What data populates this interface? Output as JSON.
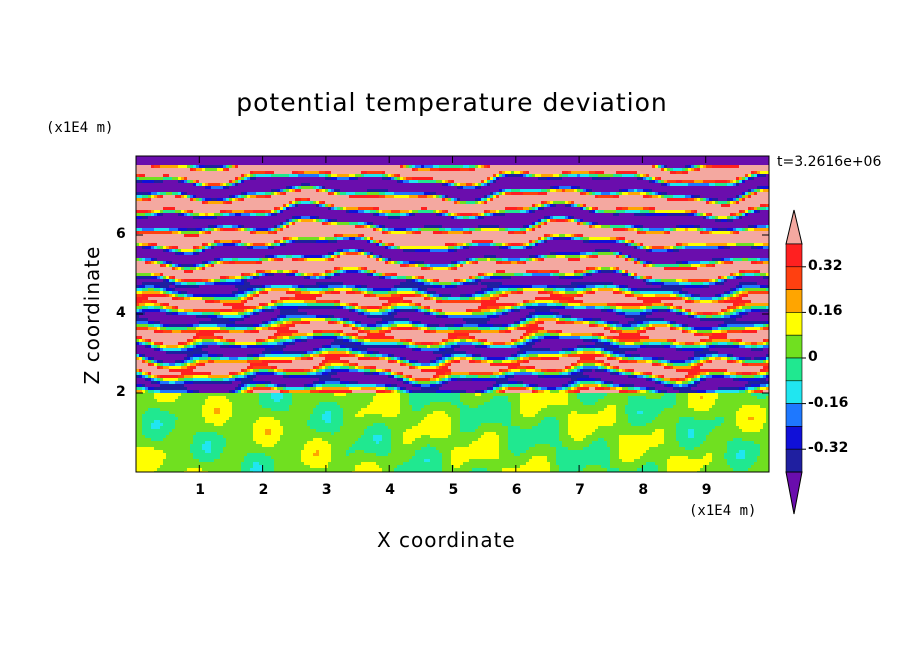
{
  "chart_data": {
    "type": "heatmap",
    "title": "potential temperature deviation",
    "xlabel": "X coordinate",
    "ylabel": "Z coordinate",
    "x_unit": "(x1E4 m)",
    "y_unit": "(x1E4 m)",
    "time_label": "t=3.2616e+06",
    "xlim": [
      0,
      10
    ],
    "ylim": [
      0,
      8
    ],
    "x_ticks": [
      "1",
      "2",
      "3",
      "4",
      "5",
      "6",
      "7",
      "8",
      "9"
    ],
    "y_ticks": [
      "2",
      "4",
      "6"
    ],
    "colorbar": {
      "labels": [
        "0.32",
        "0.16",
        "0",
        "-0.16",
        "-0.32"
      ],
      "levels": [
        -0.4,
        -0.32,
        -0.24,
        -0.16,
        -0.08,
        0,
        0.08,
        0.16,
        0.24,
        0.32,
        0.4
      ],
      "colors": [
        "#6a0dad",
        "#1f1fa0",
        "#1010d8",
        "#1e78ff",
        "#20e6f0",
        "#20e890",
        "#70e020",
        "#ffff00",
        "#ffa500",
        "#ff4010",
        "#ff2020",
        "#f4a8a0"
      ],
      "extend": "both"
    },
    "layers": [
      {
        "z": [
          0.0,
          2.0
        ],
        "description": "near-neutral lower layer",
        "dominant_values": [
          0.0,
          0.08
        ]
      },
      {
        "z": [
          2.0,
          4.8
        ],
        "description": "mixed band of alternating deviations",
        "dominant_values": [
          -0.4,
          0.4
        ]
      },
      {
        "z": [
          4.8,
          8.0
        ],
        "description": "alternating strong warm/cold sheets",
        "dominant_values": [
          -0.4,
          0.4
        ]
      }
    ]
  }
}
